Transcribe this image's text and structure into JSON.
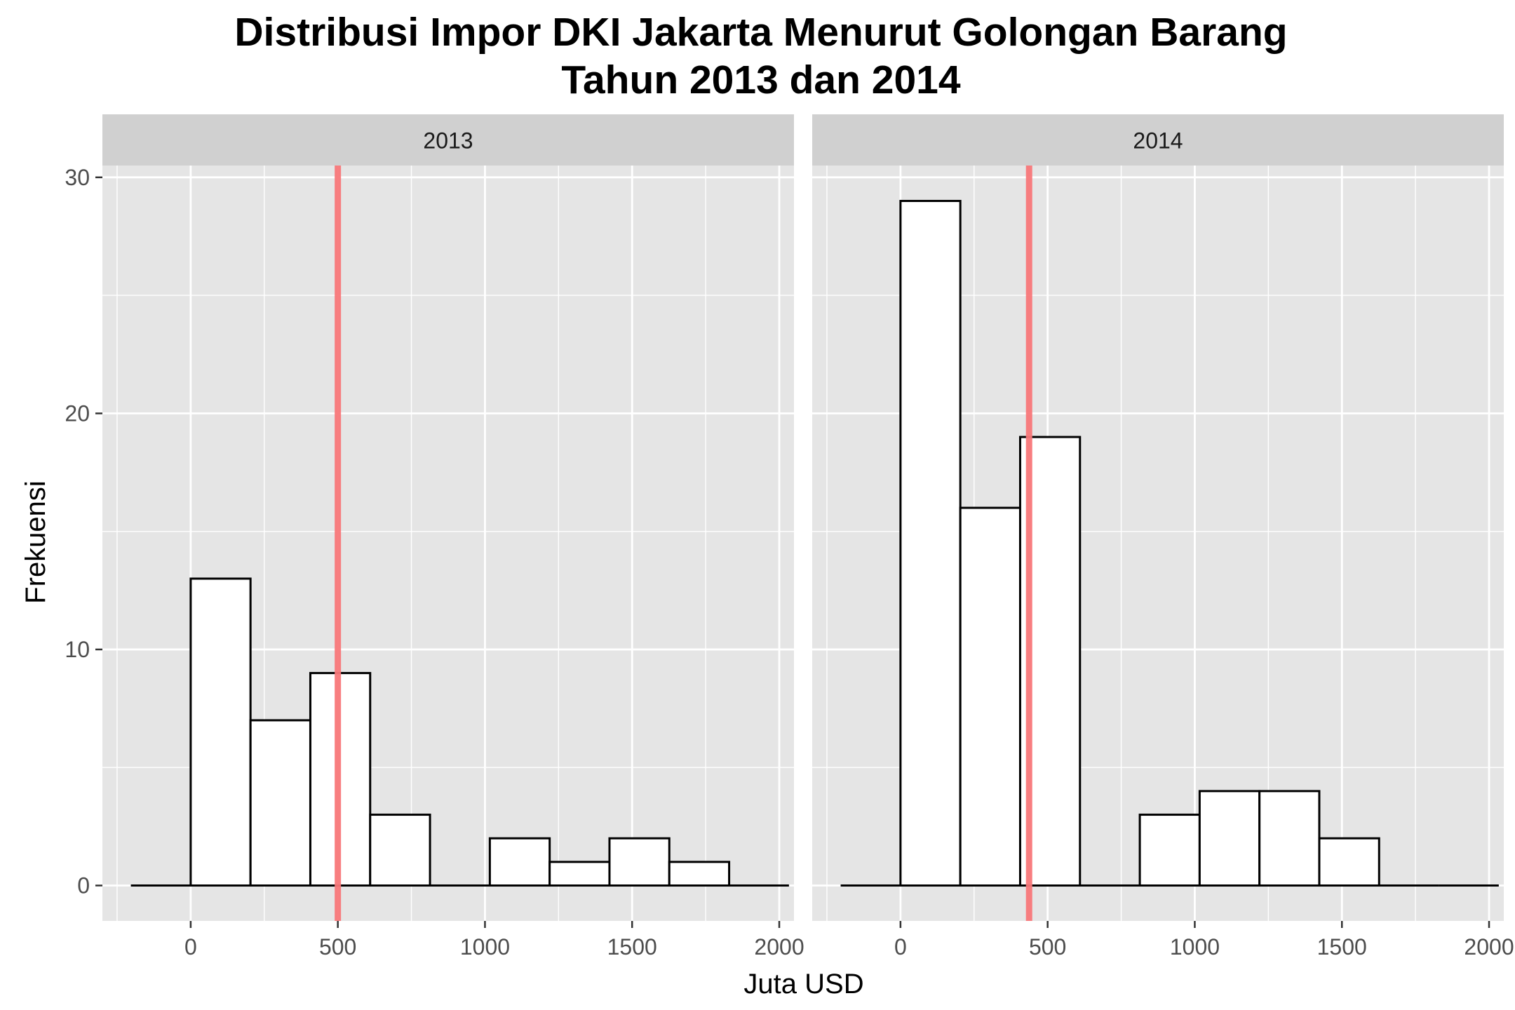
{
  "chart_data": {
    "type": "bar",
    "subtype": "histogram-faceted",
    "title_lines": [
      "Distribusi Impor DKI Jakarta Menurut Golongan Barang",
      "Tahun 2013 dan 2014"
    ],
    "xlabel": "Juta USD",
    "ylabel": "Frekuensi",
    "xlim": [
      -300,
      2050
    ],
    "ylim": [
      -1.5,
      30.5
    ],
    "x_ticks": [
      0,
      500,
      1000,
      1500,
      2000
    ],
    "y_ticks": [
      0,
      10,
      20,
      30
    ],
    "x_tick_labels": [
      "0",
      "500",
      "1000",
      "1500",
      "2000"
    ],
    "y_tick_labels": [
      "0",
      "10",
      "20",
      "30"
    ],
    "grid": true,
    "bin_width": 203.3,
    "bin_start": -203.3,
    "panels": [
      {
        "label": "2013",
        "counts": [
          0,
          13,
          7,
          9,
          3,
          0,
          2,
          1,
          2,
          1,
          0
        ],
        "mean_line": 500
      },
      {
        "label": "2014",
        "counts": [
          0,
          29,
          16,
          19,
          0,
          3,
          4,
          4,
          2,
          0,
          0
        ],
        "mean_line": 437
      }
    ],
    "colors": {
      "panel_bg": "#e5e5e5",
      "grid": "#ffffff",
      "strip_bg": "#d0d0d0",
      "bar_fill": "#ffffff",
      "bar_stroke": "#000000",
      "mean_line": "#f8787a"
    }
  }
}
